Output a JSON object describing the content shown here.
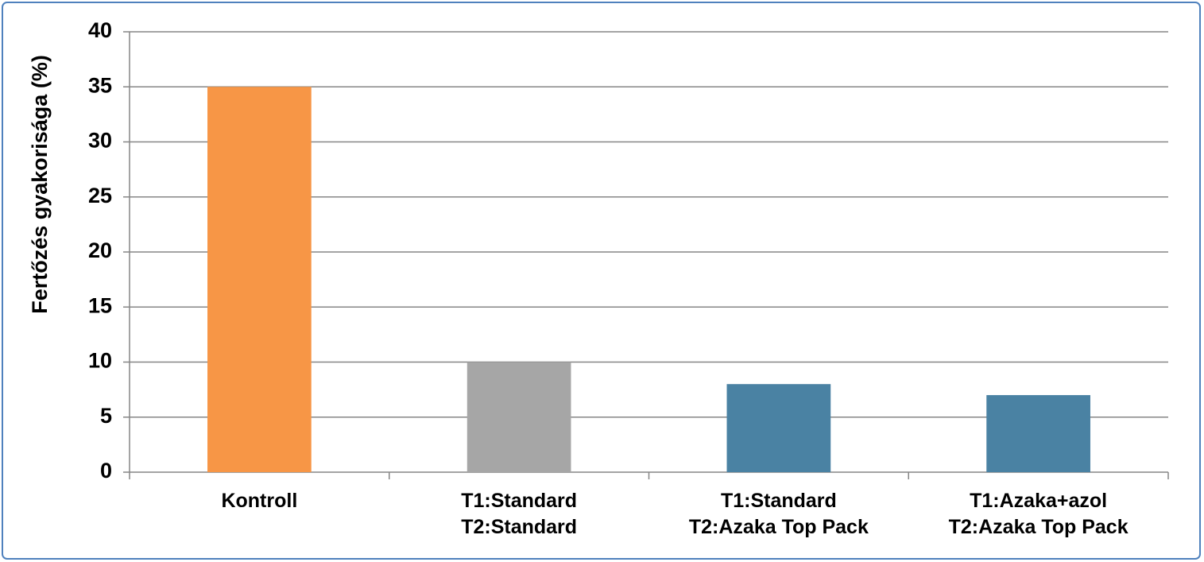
{
  "chart_data": {
    "type": "bar",
    "y_label": "Fertőzés gyakorisága (%)",
    "categories": [
      "Kontroll",
      "T1:Standard\nT2:Standard",
      "T1:Standard\nT2:Azaka Top Pack",
      "T1:Azaka+azol\nT2:Azaka Top Pack"
    ],
    "values": [
      35,
      10,
      8,
      7
    ],
    "colors": [
      "#f79646",
      "#a6a6a6",
      "#4a82a3",
      "#4a82a3"
    ],
    "ylim": [
      0,
      40
    ],
    "yticks": [
      0,
      5,
      10,
      15,
      20,
      25,
      30,
      35,
      40
    ],
    "grid": true
  }
}
